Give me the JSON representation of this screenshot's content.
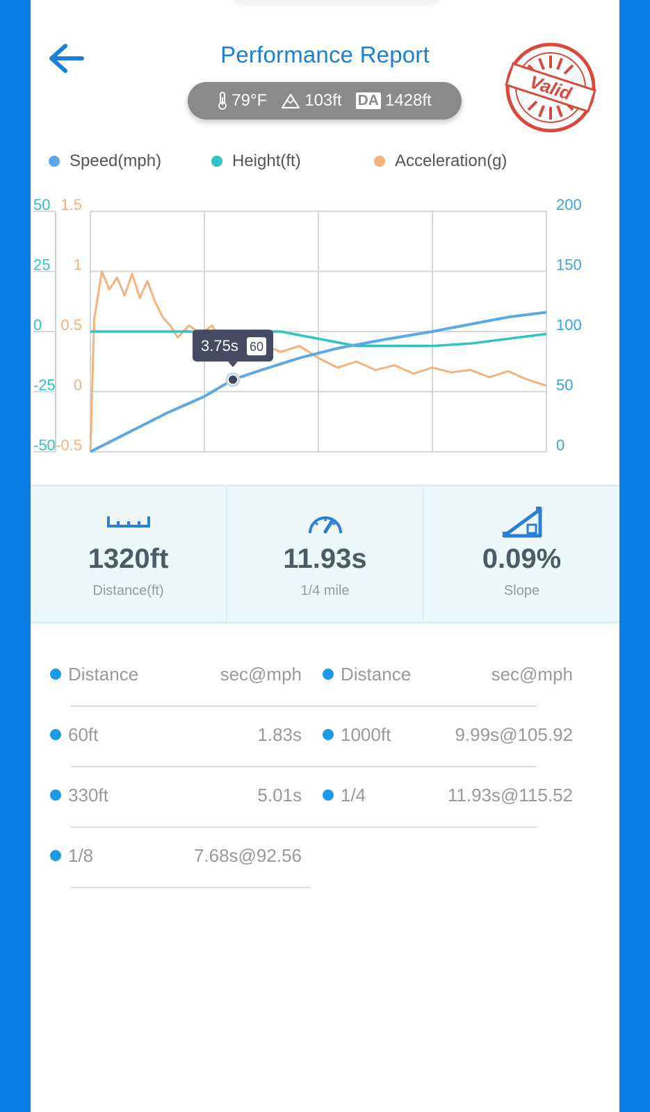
{
  "header": {
    "title": "Performance Report",
    "stamp_text": "Valid",
    "conditions": {
      "temperature": "79°F",
      "elevation": "103ft",
      "da_badge": "DA",
      "density_altitude": "1428ft"
    }
  },
  "chart_data": {
    "type": "line",
    "legend": [
      "Speed(mph)",
      "Height(ft)",
      "Acceleration(g)"
    ],
    "colors": {
      "speed": "#5aa9e6",
      "height": "#2ec4c4",
      "acceleration": "#f6b27a"
    },
    "x_range": [
      0,
      12
    ],
    "axes": {
      "height_ticks": [
        "50",
        "25",
        "0",
        "-25",
        "-50"
      ],
      "accel_ticks": [
        "1.5",
        "1",
        "0.5",
        "0",
        "-0.5"
      ],
      "speed_ticks": [
        "200",
        "150",
        "100",
        "50",
        "0"
      ],
      "height_range": [
        -50,
        50
      ],
      "accel_range": [
        -0.5,
        1.5
      ],
      "speed_range": [
        0,
        200
      ]
    },
    "series": [
      {
        "name": "Speed(mph)",
        "x": [
          0,
          0.5,
          1,
          1.5,
          2,
          2.5,
          3,
          3.75,
          4.5,
          5.5,
          6.5,
          7.68,
          9,
          9.99,
          11,
          12
        ],
        "values": [
          0,
          8,
          16,
          24,
          32,
          39,
          46,
          60,
          68,
          78,
          86,
          93,
          100,
          106,
          112,
          116
        ]
      },
      {
        "name": "Height(ft)",
        "x": [
          0,
          1,
          2,
          3,
          4,
          5,
          6,
          7,
          8,
          9,
          10,
          11,
          12
        ],
        "values": [
          0,
          0,
          0,
          0,
          0,
          0,
          -3,
          -6,
          -6,
          -6,
          -5,
          -3,
          -1
        ]
      },
      {
        "name": "Acceleration(g)",
        "x": [
          0,
          0.1,
          0.3,
          0.5,
          0.7,
          0.9,
          1.1,
          1.3,
          1.5,
          1.7,
          1.9,
          2.1,
          2.3,
          2.6,
          2.9,
          3.2,
          3.5,
          3.8,
          4.1,
          4.5,
          5,
          5.5,
          6,
          6.5,
          7,
          7.5,
          8,
          8.5,
          9,
          9.5,
          10,
          10.5,
          11,
          11.5,
          12
        ],
        "values": [
          -0.5,
          0.6,
          1.0,
          0.85,
          0.95,
          0.8,
          0.98,
          0.78,
          0.92,
          0.75,
          0.62,
          0.55,
          0.45,
          0.55,
          0.48,
          0.55,
          0.4,
          0.45,
          0.35,
          0.4,
          0.33,
          0.38,
          0.28,
          0.2,
          0.25,
          0.18,
          0.22,
          0.15,
          0.2,
          0.16,
          0.18,
          0.12,
          0.17,
          0.1,
          0.05
        ]
      }
    ],
    "tooltip": {
      "time": "3.75s",
      "speed": "60",
      "x": 3.75,
      "y": 60
    }
  },
  "stats": [
    {
      "value": "1320ft",
      "label": "Distance(ft)",
      "icon": "ruler-icon"
    },
    {
      "value": "11.93s",
      "label": "1/4 mile",
      "icon": "speedometer-icon"
    },
    {
      "value": "0.09%",
      "label": "Slope",
      "icon": "slope-icon"
    }
  ],
  "splits": {
    "left": [
      {
        "distance": "Distance",
        "value": "sec@mph"
      },
      {
        "distance": "60ft",
        "value": "1.83s"
      },
      {
        "distance": "330ft",
        "value": "5.01s"
      },
      {
        "distance": "1/8",
        "value": "7.68s@92.56"
      }
    ],
    "right": [
      {
        "distance": "Distance",
        "value": "sec@mph"
      },
      {
        "distance": "1000ft",
        "value": "9.99s@105.92"
      },
      {
        "distance": "1/4",
        "value": "11.93s@115.52"
      }
    ]
  }
}
